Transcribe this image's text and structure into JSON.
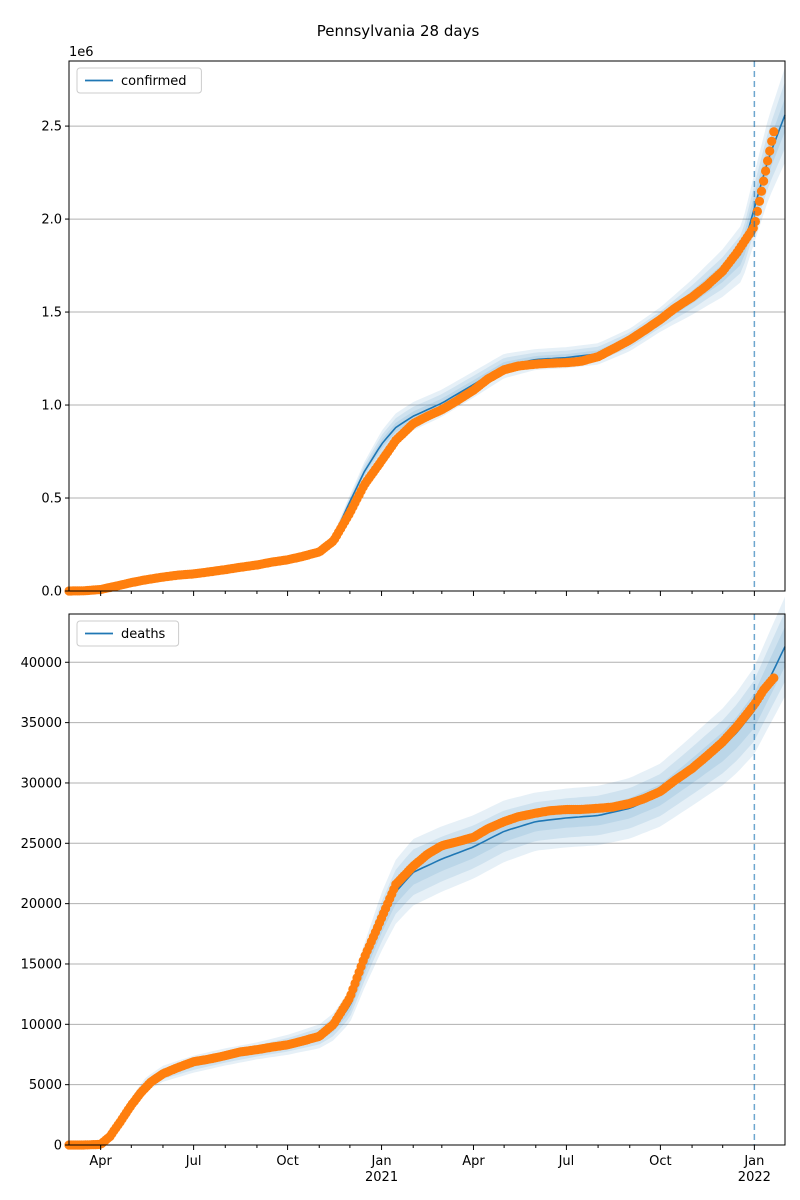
{
  "figure": {
    "title": "Pennsylvania 28 days",
    "colors": {
      "model_line": "#1f77b4",
      "observed": "#ff7f0e",
      "band": "#1f77b4",
      "grid": "#b0b0b0",
      "vline": "#1f77b4"
    }
  },
  "chart_data": [
    {
      "type": "line",
      "panel": "top",
      "legend": "confirmed",
      "legend_position": "top-left",
      "grid": "horizontal",
      "x_range": [
        "2020-03-01",
        "2022-01-31"
      ],
      "forecast_date": "2022-01-01",
      "y_lim": [
        0,
        2850000
      ],
      "y_offset_label": "1e6",
      "y_ticks": [
        0,
        500000,
        1000000,
        1500000,
        2000000,
        2500000
      ],
      "y_tick_labels": [
        "0.0",
        "0.5",
        "1.0",
        "1.5",
        "2.0",
        "2.5"
      ],
      "x_tick_labels": [],
      "model": {
        "name": "confirmed",
        "x": [
          "2020-03-01",
          "2020-04-01",
          "2020-05-01",
          "2020-06-01",
          "2020-07-01",
          "2020-08-01",
          "2020-09-01",
          "2020-10-01",
          "2020-11-01",
          "2020-11-15",
          "2020-12-01",
          "2020-12-15",
          "2021-01-01",
          "2021-01-15",
          "2021-02-01",
          "2021-03-01",
          "2021-04-01",
          "2021-05-01",
          "2021-06-01",
          "2021-07-01",
          "2021-08-01",
          "2021-09-01",
          "2021-10-01",
          "2021-11-01",
          "2021-12-01",
          "2021-12-20",
          "2022-01-01",
          "2022-01-15",
          "2022-01-31"
        ],
        "y": [
          0,
          15000,
          55000,
          80000,
          95000,
          120000,
          145000,
          170000,
          215000,
          290000,
          480000,
          640000,
          790000,
          880000,
          940000,
          1010000,
          1110000,
          1210000,
          1245000,
          1255000,
          1275000,
          1350000,
          1460000,
          1580000,
          1710000,
          1820000,
          2060000,
          2330000,
          2560000
        ]
      },
      "bands": [
        {
          "level": 1,
          "x": [
            "2020-10-01",
            "2021-01-01",
            "2021-06-01",
            "2021-10-01",
            "2022-01-01",
            "2022-01-31"
          ],
          "lower_rel": [
            0.99,
            0.97,
            0.985,
            0.985,
            0.965,
            0.965
          ],
          "upper_rel": [
            1.01,
            1.03,
            1.015,
            1.015,
            1.035,
            1.035
          ]
        },
        {
          "level": 2,
          "x": [
            "2020-10-01",
            "2021-01-01",
            "2021-06-01",
            "2021-10-01",
            "2022-01-01",
            "2022-01-31"
          ],
          "lower_rel": [
            0.975,
            0.94,
            0.97,
            0.97,
            0.94,
            0.93
          ],
          "upper_rel": [
            1.025,
            1.06,
            1.03,
            1.03,
            1.06,
            1.07
          ]
        },
        {
          "level": 3,
          "x": [
            "2020-10-01",
            "2021-01-01",
            "2021-06-01",
            "2021-10-01",
            "2022-01-01",
            "2022-01-31"
          ],
          "lower_rel": [
            0.96,
            0.91,
            0.955,
            0.955,
            0.91,
            0.9
          ],
          "upper_rel": [
            1.04,
            1.09,
            1.045,
            1.045,
            1.09,
            1.1
          ]
        }
      ],
      "observed": {
        "x": [
          "2020-03-01",
          "2020-03-15",
          "2020-04-01",
          "2020-04-15",
          "2020-05-01",
          "2020-05-15",
          "2020-06-01",
          "2020-06-15",
          "2020-07-01",
          "2020-07-15",
          "2020-08-01",
          "2020-08-15",
          "2020-09-01",
          "2020-09-15",
          "2020-10-01",
          "2020-10-15",
          "2020-11-01",
          "2020-11-15",
          "2020-12-01",
          "2020-12-15",
          "2021-01-01",
          "2021-01-15",
          "2021-02-01",
          "2021-02-15",
          "2021-03-01",
          "2021-03-15",
          "2021-04-01",
          "2021-04-15",
          "2021-05-01",
          "2021-05-15",
          "2021-06-01",
          "2021-06-15",
          "2021-07-01",
          "2021-07-15",
          "2021-08-01",
          "2021-08-15",
          "2021-09-01",
          "2021-09-15",
          "2021-10-01",
          "2021-10-15",
          "2021-11-01",
          "2021-11-15",
          "2021-12-01",
          "2021-12-15",
          "2022-01-01",
          "2022-01-08",
          "2022-01-15",
          "2022-01-20"
        ],
        "y": [
          0,
          1000,
          8000,
          25000,
          45000,
          60000,
          75000,
          85000,
          92000,
          102000,
          115000,
          127000,
          140000,
          155000,
          168000,
          185000,
          210000,
          270000,
          420000,
          570000,
          700000,
          810000,
          900000,
          940000,
          975000,
          1020000,
          1080000,
          1140000,
          1190000,
          1210000,
          1220000,
          1225000,
          1228000,
          1235000,
          1260000,
          1300000,
          1350000,
          1400000,
          1460000,
          1520000,
          1580000,
          1640000,
          1720000,
          1820000,
          1960000,
          2150000,
          2340000,
          2470000
        ]
      }
    },
    {
      "type": "line",
      "panel": "bottom",
      "legend": "deaths",
      "legend_position": "top-left",
      "grid": "horizontal",
      "x_range": [
        "2020-03-01",
        "2022-01-31"
      ],
      "forecast_date": "2022-01-01",
      "y_lim": [
        0,
        44000
      ],
      "y_ticks": [
        0,
        5000,
        10000,
        15000,
        20000,
        25000,
        30000,
        35000,
        40000
      ],
      "y_tick_labels": [
        "0",
        "5000",
        "10000",
        "15000",
        "20000",
        "25000",
        "30000",
        "35000",
        "40000"
      ],
      "x_tick_labels": [
        {
          "date": "2020-04-01",
          "label": "Apr"
        },
        {
          "date": "2020-07-01",
          "label": "Jul"
        },
        {
          "date": "2020-10-01",
          "label": "Oct"
        },
        {
          "date": "2021-01-01",
          "label": "Jan",
          "sublabel": "2021"
        },
        {
          "date": "2021-04-01",
          "label": "Apr"
        },
        {
          "date": "2021-07-01",
          "label": "Jul"
        },
        {
          "date": "2021-10-01",
          "label": "Oct"
        },
        {
          "date": "2022-01-01",
          "label": "Jan",
          "sublabel": "2022"
        }
      ],
      "model": {
        "name": "deaths",
        "x": [
          "2020-03-01",
          "2020-04-01",
          "2020-04-15",
          "2020-05-01",
          "2020-05-15",
          "2020-06-01",
          "2020-07-01",
          "2020-08-01",
          "2020-09-01",
          "2020-10-01",
          "2020-11-01",
          "2020-11-15",
          "2020-12-01",
          "2020-12-15",
          "2021-01-01",
          "2021-01-15",
          "2021-02-01",
          "2021-03-01",
          "2021-04-01",
          "2021-05-01",
          "2021-06-01",
          "2021-07-01",
          "2021-08-01",
          "2021-09-01",
          "2021-10-01",
          "2021-11-01",
          "2021-12-01",
          "2021-12-15",
          "2022-01-01",
          "2022-01-15",
          "2022-01-31"
        ],
        "y": [
          0,
          200,
          1700,
          3500,
          5000,
          5900,
          6700,
          7300,
          7800,
          8300,
          9000,
          9800,
          11500,
          14800,
          18500,
          21000,
          22600,
          23700,
          24700,
          26000,
          26800,
          27100,
          27300,
          27900,
          29000,
          31000,
          33000,
          34200,
          36000,
          38500,
          41300
        ]
      },
      "bands": [
        {
          "level": 1,
          "x": [
            "2020-05-01",
            "2020-09-01",
            "2021-01-01",
            "2021-06-01",
            "2021-10-01",
            "2022-01-01",
            "2022-01-31"
          ],
          "lower_rel": [
            0.96,
            0.97,
            0.95,
            0.97,
            0.97,
            0.96,
            0.96
          ],
          "upper_rel": [
            1.04,
            1.03,
            1.05,
            1.03,
            1.03,
            1.04,
            1.04
          ]
        },
        {
          "level": 2,
          "x": [
            "2020-05-01",
            "2020-09-01",
            "2021-01-01",
            "2021-06-01",
            "2021-10-01",
            "2022-01-01",
            "2022-01-31"
          ],
          "lower_rel": [
            0.92,
            0.94,
            0.91,
            0.94,
            0.94,
            0.93,
            0.93
          ],
          "upper_rel": [
            1.08,
            1.06,
            1.09,
            1.06,
            1.06,
            1.07,
            1.07
          ]
        },
        {
          "level": 3,
          "x": [
            "2020-05-01",
            "2020-09-01",
            "2021-01-01",
            "2021-06-01",
            "2021-10-01",
            "2022-01-01",
            "2022-01-31"
          ],
          "lower_rel": [
            0.88,
            0.91,
            0.87,
            0.91,
            0.91,
            0.9,
            0.9
          ],
          "upper_rel": [
            1.12,
            1.09,
            1.13,
            1.09,
            1.09,
            1.1,
            1.1
          ]
        }
      ],
      "observed": {
        "x": [
          "2020-03-01",
          "2020-03-15",
          "2020-04-01",
          "2020-04-10",
          "2020-04-20",
          "2020-05-01",
          "2020-05-10",
          "2020-05-20",
          "2020-06-01",
          "2020-06-15",
          "2020-07-01",
          "2020-07-15",
          "2020-08-01",
          "2020-08-15",
          "2020-09-01",
          "2020-09-15",
          "2020-10-01",
          "2020-10-15",
          "2020-11-01",
          "2020-11-15",
          "2020-12-01",
          "2020-12-15",
          "2021-01-01",
          "2021-01-15",
          "2021-02-01",
          "2021-02-15",
          "2021-03-01",
          "2021-03-15",
          "2021-04-01",
          "2021-04-15",
          "2021-05-01",
          "2021-05-15",
          "2021-06-01",
          "2021-06-15",
          "2021-07-01",
          "2021-07-15",
          "2021-08-01",
          "2021-08-15",
          "2021-09-01",
          "2021-09-15",
          "2021-10-01",
          "2021-10-15",
          "2021-11-01",
          "2021-11-15",
          "2021-12-01",
          "2021-12-15",
          "2022-01-01",
          "2022-01-10",
          "2022-01-20"
        ],
        "y": [
          0,
          0,
          50,
          700,
          1900,
          3300,
          4300,
          5200,
          5900,
          6400,
          6900,
          7100,
          7400,
          7700,
          7900,
          8100,
          8300,
          8600,
          9000,
          10000,
          12200,
          15500,
          18800,
          21600,
          23100,
          24100,
          24800,
          25100,
          25500,
          26200,
          26800,
          27200,
          27500,
          27700,
          27800,
          27800,
          27900,
          28000,
          28300,
          28700,
          29300,
          30200,
          31200,
          32200,
          33400,
          34700,
          36500,
          37700,
          38700
        ]
      }
    }
  ]
}
